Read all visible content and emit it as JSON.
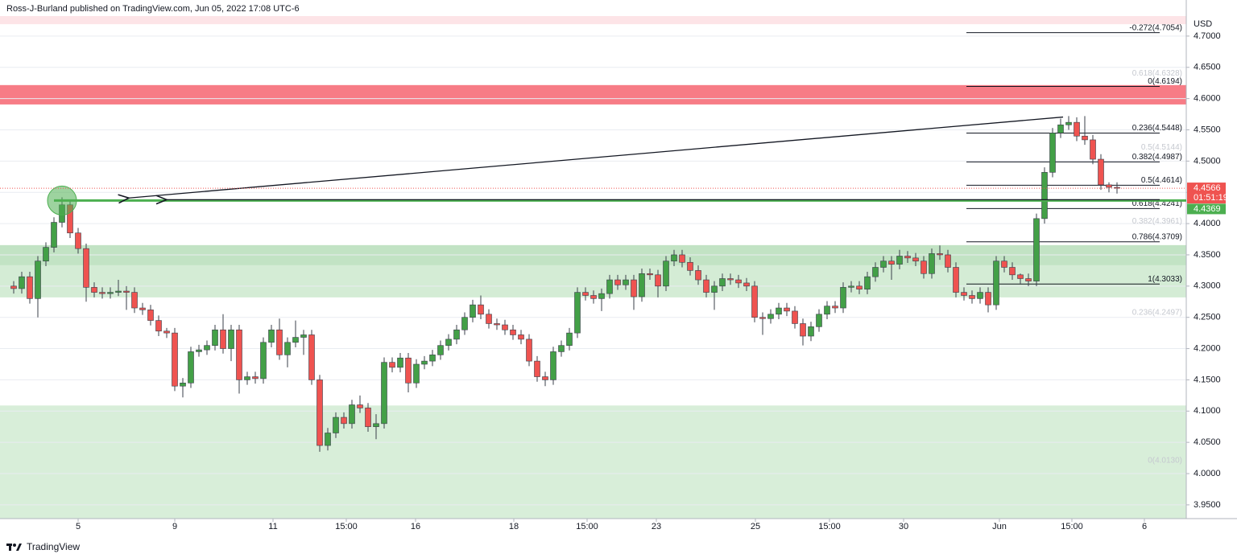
{
  "header": "Ross-J-Burland published on TradingView.com, Jun 05, 2022 17:08 UTC-6",
  "footer": "TradingView",
  "chart_data": {
    "type": "candlestick",
    "currency": "USD",
    "up_color": "#43a047",
    "down_color": "#ef5350",
    "ylim": [
      3.928,
      4.732
    ],
    "xlim": [
      -1.7,
      145.6
    ],
    "grid": true,
    "yticks": [
      {
        "value": 4.7,
        "label": "4.7000"
      },
      {
        "value": 4.65,
        "label": "4.6500"
      },
      {
        "value": 4.6,
        "label": "4.6000"
      },
      {
        "value": 4.55,
        "label": "4.5500"
      },
      {
        "value": 4.5,
        "label": "4.5000"
      },
      {
        "value": 4.45,
        "label": "4.4500"
      },
      {
        "value": 4.4,
        "label": "4.4000"
      },
      {
        "value": 4.35,
        "label": "4.3500"
      },
      {
        "value": 4.3,
        "label": "4.3000"
      },
      {
        "value": 4.25,
        "label": "4.2500"
      },
      {
        "value": 4.2,
        "label": "4.2000"
      },
      {
        "value": 4.15,
        "label": "4.1500"
      },
      {
        "value": 4.1,
        "label": "4.1000"
      },
      {
        "value": 4.05,
        "label": "4.0500"
      },
      {
        "value": 4.0,
        "label": "4.0000"
      },
      {
        "value": 3.95,
        "label": "3.9500"
      }
    ],
    "xticks": [
      {
        "value": 8,
        "label": "5"
      },
      {
        "value": 20,
        "label": "9"
      },
      {
        "value": 32.2,
        "label": "11"
      },
      {
        "value": 41.3,
        "label": "15:00"
      },
      {
        "value": 49.9,
        "label": "16"
      },
      {
        "value": 62.1,
        "label": "18"
      },
      {
        "value": 71.2,
        "label": "15:00"
      },
      {
        "value": 79.8,
        "label": "23"
      },
      {
        "value": 92.1,
        "label": "25"
      },
      {
        "value": 101.3,
        "label": "15:00"
      },
      {
        "value": 110.5,
        "label": "30"
      },
      {
        "value": 122.4,
        "label": "Jun"
      },
      {
        "value": 131.4,
        "label": "15:00"
      },
      {
        "value": 140.4,
        "label": "6"
      }
    ],
    "zones": [
      {
        "from": 4.732,
        "to": 4.719,
        "color": "#fde4e7"
      },
      {
        "from": 4.6216,
        "to": 4.5906,
        "color": "#f77c86"
      },
      {
        "from": 4.3655,
        "to": 4.2819,
        "color": "#d4ecd5"
      },
      {
        "from": 4.3655,
        "to": 4.3335,
        "color": "#c2e3c4"
      },
      {
        "from": 4.109,
        "to": 3.928,
        "color": "#d8eed9"
      }
    ],
    "fib_levels": [
      {
        "label": "-0.272(4.7054)",
        "value": 4.7054,
        "faint": false
      },
      {
        "label": "0.618(4.6328)",
        "value": 4.6328,
        "faint": true
      },
      {
        "label": "0(4.6194)",
        "value": 4.6194,
        "faint": false
      },
      {
        "label": "0.236(4.5448)",
        "value": 4.5448,
        "faint": false
      },
      {
        "label": "0.5(4.5144)",
        "value": 4.5144,
        "faint": true
      },
      {
        "label": "0.382(4.4987)",
        "value": 4.4987,
        "faint": false
      },
      {
        "label": "0.5(4.4614)",
        "value": 4.4614,
        "faint": false
      },
      {
        "label": "0.618(4.4241)",
        "value": 4.4241,
        "faint": false
      },
      {
        "label": "0.382(4.3961)",
        "value": 4.3961,
        "faint": true
      },
      {
        "label": "0.786(4.3709)",
        "value": 4.3709,
        "faint": false
      },
      {
        "label": "1(4.3033)",
        "value": 4.3033,
        "faint": false
      },
      {
        "label": "0.236(4.2497)",
        "value": 4.2497,
        "faint": true
      },
      {
        "label": "0(4.0130)",
        "value": 4.013,
        "faint": true
      }
    ],
    "level_line": {
      "value": 4.4369,
      "color": "#4caf50"
    },
    "trendline": {
      "from": [
        130.3,
        4.5705
      ],
      "to": [
        14.3,
        4.441
      ]
    },
    "last_price": 4.4566,
    "countdown": "01:51:19",
    "open": [
      4.3,
      4.296,
      4.315,
      4.28,
      4.34,
      4.362,
      4.402,
      4.43,
      4.385,
      4.36,
      4.298,
      4.29,
      4.288,
      4.29,
      4.292,
      4.29,
      4.265,
      4.262,
      4.245,
      4.228,
      4.225,
      4.14,
      4.145,
      4.195,
      4.198,
      4.205,
      4.23,
      4.2,
      4.23,
      4.15,
      4.155,
      4.152,
      4.21,
      4.23,
      4.19,
      4.21,
      4.218,
      4.222,
      4.15,
      4.045,
      4.065,
      4.09,
      4.08,
      4.11,
      4.105,
      4.075,
      4.08,
      4.178,
      4.17,
      4.185,
      4.145,
      4.175,
      4.18,
      4.19,
      4.205,
      4.215,
      4.23,
      4.25,
      4.27,
      4.255,
      4.24,
      4.238,
      4.23,
      4.222,
      4.215,
      4.18,
      4.155,
      4.15,
      4.195,
      4.205,
      4.225,
      4.29,
      4.285,
      4.28,
      4.288,
      4.31,
      4.302,
      4.31,
      4.283,
      4.32,
      4.318,
      4.3,
      4.34,
      4.35,
      4.338,
      4.325,
      4.31,
      4.29,
      4.3,
      4.312,
      4.31,
      4.305,
      4.3,
      4.25,
      4.248,
      4.255,
      4.265,
      4.26,
      4.24,
      4.22,
      4.235,
      4.255,
      4.268,
      4.265,
      4.298,
      4.3,
      4.295,
      4.315,
      4.33,
      4.34,
      4.335,
      4.348,
      4.345,
      4.34,
      4.32,
      4.352,
      4.35,
      4.33,
      4.29,
      4.285,
      4.28,
      4.29,
      4.27,
      4.34,
      4.33,
      4.318,
      4.312,
      4.308,
      4.408,
      4.482,
      4.545,
      4.558,
      4.562,
      4.54,
      4.534,
      4.503,
      4.462,
      4.458
    ],
    "high": [
      4.308,
      4.323,
      4.323,
      4.348,
      4.37,
      4.41,
      4.442,
      4.438,
      4.393,
      4.368,
      4.306,
      4.298,
      4.298,
      4.31,
      4.3,
      4.298,
      4.273,
      4.27,
      4.253,
      4.233,
      4.233,
      4.153,
      4.203,
      4.206,
      4.213,
      4.238,
      4.255,
      4.238,
      4.238,
      4.163,
      4.163,
      4.218,
      4.238,
      4.248,
      4.218,
      4.245,
      4.23,
      4.23,
      4.158,
      4.073,
      4.098,
      4.098,
      4.118,
      4.125,
      4.113,
      4.095,
      4.186,
      4.186,
      4.193,
      4.193,
      4.183,
      4.188,
      4.198,
      4.213,
      4.223,
      4.238,
      4.258,
      4.278,
      4.285,
      4.263,
      4.248,
      4.246,
      4.238,
      4.23,
      4.223,
      4.188,
      4.163,
      4.203,
      4.213,
      4.233,
      4.298,
      4.298,
      4.293,
      4.296,
      4.318,
      4.318,
      4.318,
      4.318,
      4.328,
      4.328,
      4.326,
      4.348,
      4.358,
      4.358,
      4.346,
      4.333,
      4.318,
      4.308,
      4.32,
      4.32,
      4.318,
      4.313,
      4.308,
      4.258,
      4.263,
      4.273,
      4.273,
      4.268,
      4.248,
      4.243,
      4.263,
      4.276,
      4.276,
      4.306,
      4.308,
      4.308,
      4.323,
      4.338,
      4.348,
      4.348,
      4.358,
      4.356,
      4.353,
      4.348,
      4.36,
      4.365,
      4.358,
      4.338,
      4.298,
      4.293,
      4.298,
      4.298,
      4.348,
      4.348,
      4.338,
      4.32,
      4.32,
      4.416,
      4.49,
      4.553,
      4.568,
      4.572,
      4.57,
      4.572,
      4.542,
      4.511,
      4.466,
      4.466
    ],
    "low": [
      4.288,
      4.288,
      4.272,
      4.25,
      4.332,
      4.354,
      4.394,
      4.377,
      4.352,
      4.275,
      4.282,
      4.28,
      4.28,
      4.284,
      4.262,
      4.257,
      4.254,
      4.237,
      4.22,
      4.217,
      4.132,
      4.122,
      4.137,
      4.187,
      4.19,
      4.197,
      4.192,
      4.18,
      4.128,
      4.142,
      4.144,
      4.144,
      4.202,
      4.182,
      4.17,
      4.202,
      4.19,
      4.142,
      4.035,
      4.037,
      4.057,
      4.072,
      4.072,
      4.097,
      4.067,
      4.055,
      4.072,
      4.162,
      4.162,
      4.13,
      4.137,
      4.167,
      4.172,
      4.182,
      4.197,
      4.207,
      4.222,
      4.242,
      4.247,
      4.232,
      4.23,
      4.222,
      4.214,
      4.207,
      4.172,
      4.147,
      4.14,
      4.142,
      4.187,
      4.197,
      4.217,
      4.277,
      4.272,
      4.26,
      4.28,
      4.294,
      4.294,
      4.262,
      4.275,
      4.31,
      4.282,
      4.292,
      4.332,
      4.33,
      4.317,
      4.302,
      4.282,
      4.262,
      4.292,
      4.302,
      4.297,
      4.292,
      4.242,
      4.222,
      4.24,
      4.247,
      4.252,
      4.232,
      4.205,
      4.212,
      4.227,
      4.247,
      4.257,
      4.257,
      4.29,
      4.287,
      4.287,
      4.307,
      4.322,
      4.31,
      4.327,
      4.337,
      4.332,
      4.312,
      4.312,
      4.342,
      4.322,
      4.282,
      4.277,
      4.272,
      4.272,
      4.258,
      4.262,
      4.322,
      4.31,
      4.304,
      4.3,
      4.3,
      4.4,
      4.474,
      4.537,
      4.55,
      4.532,
      4.526,
      4.495,
      4.454,
      4.45,
      4.448
    ],
    "close": [
      4.296,
      4.315,
      4.28,
      4.34,
      4.362,
      4.402,
      4.43,
      4.385,
      4.36,
      4.298,
      4.29,
      4.288,
      4.29,
      4.292,
      4.29,
      4.265,
      4.262,
      4.245,
      4.228,
      4.225,
      4.14,
      4.145,
      4.195,
      4.198,
      4.205,
      4.23,
      4.2,
      4.23,
      4.15,
      4.155,
      4.152,
      4.21,
      4.23,
      4.19,
      4.21,
      4.218,
      4.222,
      4.15,
      4.045,
      4.065,
      4.09,
      4.08,
      4.11,
      4.105,
      4.075,
      4.08,
      4.178,
      4.17,
      4.185,
      4.145,
      4.175,
      4.18,
      4.19,
      4.205,
      4.215,
      4.23,
      4.25,
      4.27,
      4.255,
      4.24,
      4.238,
      4.23,
      4.222,
      4.215,
      4.18,
      4.155,
      4.15,
      4.195,
      4.205,
      4.225,
      4.29,
      4.285,
      4.28,
      4.288,
      4.31,
      4.302,
      4.31,
      4.283,
      4.32,
      4.318,
      4.3,
      4.34,
      4.35,
      4.338,
      4.325,
      4.31,
      4.29,
      4.3,
      4.312,
      4.31,
      4.305,
      4.3,
      4.25,
      4.248,
      4.255,
      4.265,
      4.26,
      4.24,
      4.22,
      4.235,
      4.255,
      4.268,
      4.265,
      4.298,
      4.3,
      4.295,
      4.315,
      4.33,
      4.34,
      4.335,
      4.348,
      4.345,
      4.34,
      4.32,
      4.352,
      4.35,
      4.33,
      4.29,
      4.285,
      4.28,
      4.29,
      4.27,
      4.34,
      4.33,
      4.318,
      4.312,
      4.308,
      4.408,
      4.482,
      4.545,
      4.558,
      4.562,
      4.54,
      4.534,
      4.503,
      4.462,
      4.458,
      4.4566
    ]
  }
}
